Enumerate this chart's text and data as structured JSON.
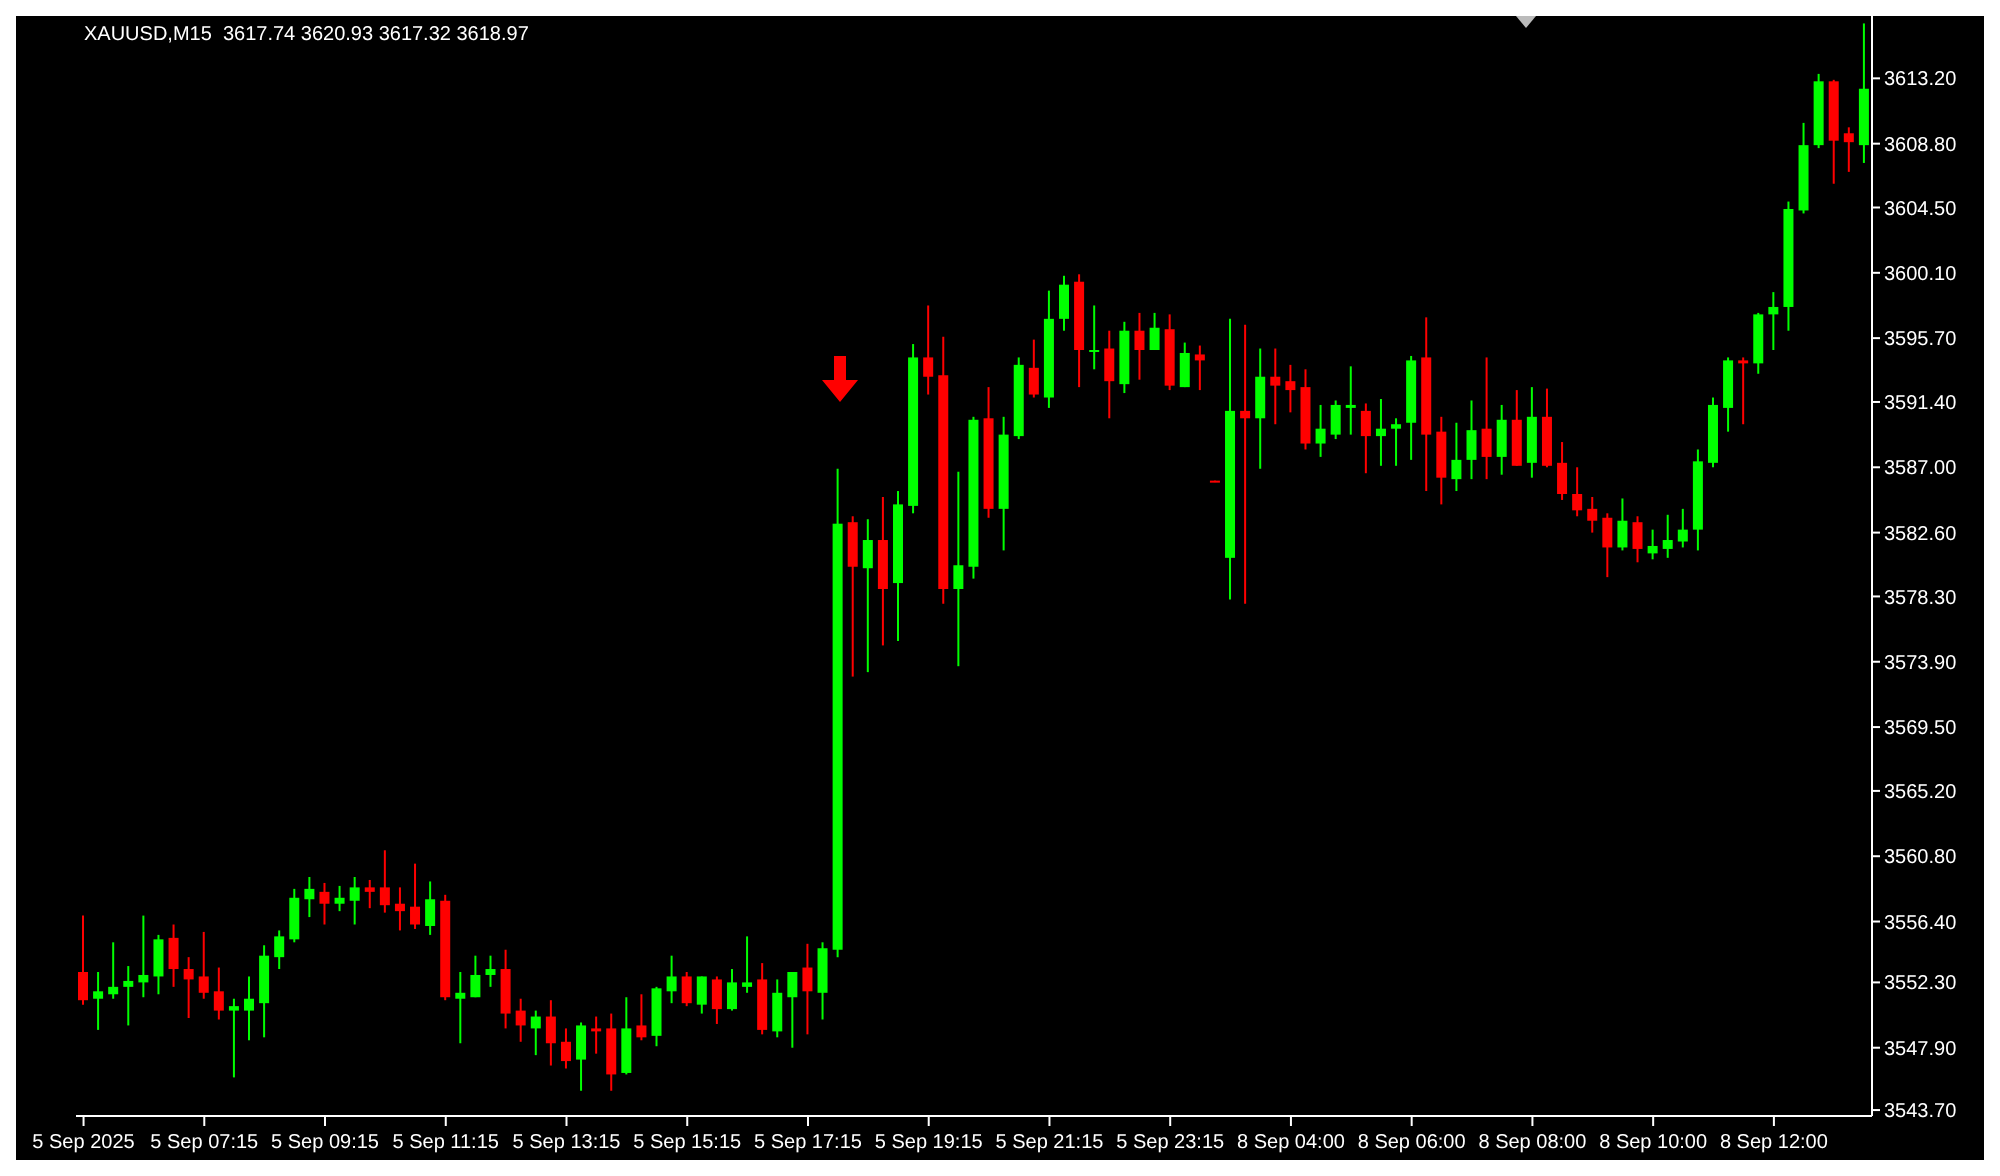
{
  "chart_data": {
    "type": "candlestick",
    "title": "XAUUSD,M15  3617.74 3620.93 3617.32 3618.97",
    "categories": [
      "5 Sep 2025",
      null,
      null,
      null,
      null,
      null,
      null,
      null,
      "5 Sep 07:15",
      null,
      null,
      null,
      null,
      null,
      null,
      null,
      "5 Sep 09:15",
      null,
      null,
      null,
      null,
      null,
      null,
      null,
      "5 Sep 11:15",
      null,
      null,
      null,
      null,
      null,
      null,
      null,
      "5 Sep 13:15",
      null,
      null,
      null,
      null,
      null,
      null,
      null,
      "5 Sep 15:15",
      null,
      null,
      null,
      null,
      null,
      null,
      null,
      "5 Sep 17:15",
      null,
      null,
      null,
      null,
      null,
      null,
      null,
      "5 Sep 19:15",
      null,
      null,
      null,
      null,
      null,
      null,
      null,
      "5 Sep 21:15",
      null,
      null,
      null,
      null,
      null,
      null,
      null,
      "5 Sep 23:15",
      null,
      null,
      null,
      null,
      null,
      null,
      null,
      "8 Sep 04:00",
      null,
      null,
      null,
      null,
      null,
      null,
      null,
      "8 Sep 06:00",
      null,
      null,
      null,
      null,
      null,
      null,
      null,
      "8 Sep 08:00",
      null,
      null,
      null,
      null,
      null,
      null,
      null,
      "8 Sep 10:00",
      null,
      null,
      null,
      null,
      null,
      null,
      null,
      "8 Sep 12:00",
      null,
      null,
      null,
      null,
      null,
      null
    ],
    "ohlc": [
      [
        3553.0,
        3556.8,
        3550.8,
        3551.1
      ],
      [
        3551.2,
        3553.0,
        3549.1,
        3551.7
      ],
      [
        3551.5,
        3555.0,
        3551.2,
        3552.0
      ],
      [
        3552.0,
        3553.4,
        3549.4,
        3552.4
      ],
      [
        3552.3,
        3556.8,
        3551.3,
        3552.8
      ],
      [
        3552.7,
        3555.5,
        3551.5,
        3555.2
      ],
      [
        3555.3,
        3556.2,
        3552.0,
        3553.2
      ],
      [
        3553.2,
        3554.0,
        3549.9,
        3552.5
      ],
      [
        3552.7,
        3555.7,
        3551.2,
        3551.6
      ],
      [
        3551.7,
        3553.3,
        3549.8,
        3550.4
      ],
      [
        3550.4,
        3551.2,
        3545.9,
        3550.7
      ],
      [
        3550.4,
        3552.7,
        3548.4,
        3551.2
      ],
      [
        3550.9,
        3554.8,
        3548.6,
        3554.1
      ],
      [
        3554.0,
        3555.8,
        3553.2,
        3555.4
      ],
      [
        3555.2,
        3558.6,
        3555.0,
        3558.0
      ],
      [
        3557.9,
        3559.4,
        3556.7,
        3558.6
      ],
      [
        3558.4,
        3559.0,
        3556.2,
        3557.6
      ],
      [
        3557.6,
        3558.8,
        3557.1,
        3558.0
      ],
      [
        3557.8,
        3559.4,
        3556.2,
        3558.7
      ],
      [
        3558.7,
        3559.2,
        3557.3,
        3558.4
      ],
      [
        3558.7,
        3561.2,
        3557.0,
        3557.5
      ],
      [
        3557.6,
        3558.7,
        3555.8,
        3557.1
      ],
      [
        3557.4,
        3560.3,
        3555.9,
        3556.2
      ],
      [
        3556.1,
        3559.1,
        3555.5,
        3557.9
      ],
      [
        3557.8,
        3558.2,
        3551.1,
        3551.3
      ],
      [
        3551.2,
        3553.0,
        3548.2,
        3551.6
      ],
      [
        3551.3,
        3554.1,
        3551.3,
        3552.8
      ],
      [
        3552.8,
        3554.1,
        3552.0,
        3553.2
      ],
      [
        3553.2,
        3554.5,
        3549.2,
        3550.2
      ],
      [
        3550.4,
        3551.2,
        3548.3,
        3549.4
      ],
      [
        3549.2,
        3550.4,
        3547.4,
        3550.0
      ],
      [
        3550.0,
        3551.1,
        3546.7,
        3548.2
      ],
      [
        3548.3,
        3549.2,
        3546.5,
        3547.0
      ],
      [
        3547.1,
        3549.6,
        3545.0,
        3549.4
      ],
      [
        3549.2,
        3550.0,
        3547.5,
        3549.0
      ],
      [
        3549.2,
        3550.2,
        3545.0,
        3546.1
      ],
      [
        3546.2,
        3551.3,
        3546.1,
        3549.2
      ],
      [
        3549.4,
        3551.5,
        3548.4,
        3548.6
      ],
      [
        3548.7,
        3552.0,
        3548.0,
        3551.9
      ],
      [
        3551.7,
        3554.1,
        3550.9,
        3552.7
      ],
      [
        3552.7,
        3553.0,
        3550.7,
        3550.9
      ],
      [
        3550.8,
        3552.7,
        3550.2,
        3552.7
      ],
      [
        3552.5,
        3552.7,
        3549.5,
        3550.5
      ],
      [
        3550.5,
        3553.2,
        3550.4,
        3552.3
      ],
      [
        3552.0,
        3555.4,
        3551.6,
        3552.3
      ],
      [
        3552.5,
        3553.6,
        3548.8,
        3549.1
      ],
      [
        3549.0,
        3552.5,
        3548.6,
        3551.6
      ],
      [
        3551.3,
        3553.0,
        3547.9,
        3553.0
      ],
      [
        3553.3,
        3554.9,
        3548.8,
        3551.7
      ],
      [
        3551.6,
        3555.0,
        3549.8,
        3554.6
      ],
      [
        3554.5,
        3586.9,
        3554.0,
        3583.2
      ],
      [
        3583.3,
        3583.7,
        3572.9,
        3580.3
      ],
      [
        3580.2,
        3583.5,
        3573.2,
        3582.1
      ],
      [
        3582.1,
        3585.0,
        3575.0,
        3578.8
      ],
      [
        3579.2,
        3585.4,
        3575.3,
        3584.5
      ],
      [
        3584.4,
        3595.3,
        3583.9,
        3594.4
      ],
      [
        3594.4,
        3597.9,
        3591.9,
        3593.1
      ],
      [
        3593.2,
        3595.8,
        3577.8,
        3578.8
      ],
      [
        3578.8,
        3586.7,
        3573.6,
        3580.4
      ],
      [
        3580.3,
        3590.4,
        3579.5,
        3590.2
      ],
      [
        3590.3,
        3592.4,
        3583.6,
        3584.2
      ],
      [
        3584.2,
        3590.4,
        3581.4,
        3589.2
      ],
      [
        3589.1,
        3594.4,
        3588.9,
        3593.9
      ],
      [
        3593.7,
        3595.6,
        3591.7,
        3591.9
      ],
      [
        3591.7,
        3598.9,
        3591.0,
        3597.0
      ],
      [
        3597.0,
        3599.9,
        3596.2,
        3599.3
      ],
      [
        3599.5,
        3600.0,
        3592.4,
        3594.9
      ],
      [
        3594.8,
        3597.9,
        3593.6,
        3594.9
      ],
      [
        3595.0,
        3596.2,
        3590.3,
        3592.8
      ],
      [
        3592.6,
        3596.8,
        3592.0,
        3596.2
      ],
      [
        3596.2,
        3597.4,
        3592.9,
        3594.9
      ],
      [
        3594.9,
        3597.4,
        3594.9,
        3596.4
      ],
      [
        3596.3,
        3597.3,
        3592.2,
        3592.5
      ],
      [
        3592.4,
        3595.4,
        3592.4,
        3594.7
      ],
      [
        3594.6,
        3595.2,
        3592.2,
        3594.2
      ],
      [
        3586.1,
        3586.1,
        3586.0,
        3586.0
      ],
      [
        3580.9,
        3597.0,
        3578.1,
        3590.8
      ],
      [
        3590.8,
        3596.6,
        3577.8,
        3590.3
      ],
      [
        3590.3,
        3595.0,
        3586.9,
        3593.1
      ],
      [
        3593.1,
        3595.0,
        3589.9,
        3592.5
      ],
      [
        3592.8,
        3593.9,
        3590.7,
        3592.2
      ],
      [
        3592.4,
        3593.6,
        3588.2,
        3588.6
      ],
      [
        3588.6,
        3591.2,
        3587.7,
        3589.6
      ],
      [
        3589.2,
        3591.5,
        3588.9,
        3591.2
      ],
      [
        3591.0,
        3593.8,
        3589.2,
        3591.2
      ],
      [
        3590.8,
        3591.3,
        3586.6,
        3589.1
      ],
      [
        3589.1,
        3591.6,
        3587.1,
        3589.6
      ],
      [
        3589.6,
        3590.3,
        3587.1,
        3589.9
      ],
      [
        3590.0,
        3594.5,
        3587.5,
        3594.2
      ],
      [
        3594.4,
        3597.1,
        3585.4,
        3589.2
      ],
      [
        3589.4,
        3590.4,
        3584.5,
        3586.3
      ],
      [
        3586.2,
        3590.0,
        3585.4,
        3587.5
      ],
      [
        3587.5,
        3591.5,
        3586.2,
        3589.5
      ],
      [
        3589.6,
        3594.4,
        3586.2,
        3587.7
      ],
      [
        3587.7,
        3591.2,
        3586.5,
        3590.2
      ],
      [
        3590.2,
        3592.2,
        3587.1,
        3587.1
      ],
      [
        3587.3,
        3592.4,
        3586.3,
        3590.4
      ],
      [
        3590.4,
        3592.3,
        3587.0,
        3587.1
      ],
      [
        3587.3,
        3588.7,
        3584.8,
        3585.2
      ],
      [
        3585.2,
        3587.0,
        3583.7,
        3584.1
      ],
      [
        3584.2,
        3585.0,
        3582.6,
        3583.4
      ],
      [
        3583.6,
        3583.9,
        3579.6,
        3581.6
      ],
      [
        3581.6,
        3584.9,
        3581.4,
        3583.4
      ],
      [
        3583.3,
        3583.7,
        3580.6,
        3581.5
      ],
      [
        3581.2,
        3582.8,
        3580.8,
        3581.7
      ],
      [
        3581.5,
        3583.8,
        3580.9,
        3582.1
      ],
      [
        3582.0,
        3584.2,
        3581.6,
        3582.8
      ],
      [
        3582.8,
        3588.2,
        3581.4,
        3587.4
      ],
      [
        3587.3,
        3591.7,
        3587.0,
        3591.2
      ],
      [
        3591.0,
        3594.4,
        3589.4,
        3594.2
      ],
      [
        3594.2,
        3594.4,
        3589.9,
        3594.0
      ],
      [
        3594.0,
        3597.4,
        3593.3,
        3597.3
      ],
      [
        3597.3,
        3598.8,
        3594.9,
        3597.8
      ],
      [
        3597.8,
        3604.9,
        3596.2,
        3604.4
      ],
      [
        3604.3,
        3610.2,
        3604.1,
        3608.7
      ],
      [
        3608.7,
        3613.5,
        3608.5,
        3613.0
      ],
      [
        3613.0,
        3613.1,
        3606.1,
        3609.0
      ],
      [
        3609.5,
        3609.9,
        3606.9,
        3608.9
      ],
      [
        3608.7,
        3616.9,
        3607.5,
        3612.5
      ]
    ],
    "colors": [
      "#ff0000",
      "#00ff00",
      "#00ff00",
      "#00ff00",
      "#00ff00",
      "#00ff00",
      "#ff0000",
      "#ff0000",
      "#ff0000",
      "#ff0000",
      "#00ff00",
      "#00ff00",
      "#00ff00",
      "#00ff00",
      "#00ff00",
      "#00ff00",
      "#ff0000",
      "#00ff00",
      "#00ff00",
      "#ff0000",
      "#ff0000",
      "#ff0000",
      "#ff0000",
      "#00ff00",
      "#ff0000",
      "#00ff00",
      "#00ff00",
      "#00ff00",
      "#ff0000",
      "#ff0000",
      "#00ff00",
      "#ff0000",
      "#ff0000",
      "#00ff00",
      "#ff0000",
      "#ff0000",
      "#00ff00",
      "#ff0000",
      "#00ff00",
      "#00ff00",
      "#ff0000",
      "#00ff00",
      "#ff0000",
      "#00ff00",
      "#00ff00",
      "#ff0000",
      "#00ff00",
      "#00ff00",
      "#ff0000",
      "#00ff00",
      "#00ff00",
      "#ff0000",
      "#00ff00",
      "#ff0000",
      "#00ff00",
      "#00ff00",
      "#ff0000",
      "#ff0000",
      "#00ff00",
      "#00ff00",
      "#ff0000",
      "#00ff00",
      "#00ff00",
      "#ff0000",
      "#00ff00",
      "#00ff00",
      "#ff0000",
      "#00ff00",
      "#ff0000",
      "#00ff00",
      "#ff0000",
      "#00ff00",
      "#ff0000",
      "#00ff00",
      "#ff0000",
      "#ff0000",
      "#00ff00",
      "#ff0000",
      "#00ff00",
      "#ff0000",
      "#ff0000",
      "#ff0000",
      "#00ff00",
      "#00ff00",
      "#00ff00",
      "#ff0000",
      "#00ff00",
      "#00ff00",
      "#00ff00",
      "#ff0000",
      "#ff0000",
      "#00ff00",
      "#00ff00",
      "#ff0000",
      "#00ff00",
      "#ff0000",
      "#00ff00",
      "#ff0000",
      "#ff0000",
      "#ff0000",
      "#ff0000",
      "#ff0000",
      "#00ff00",
      "#ff0000",
      "#00ff00",
      "#00ff00",
      "#00ff00",
      "#00ff00",
      "#00ff00",
      "#00ff00",
      "#ff0000",
      "#00ff00",
      "#00ff00",
      "#00ff00",
      "#00ff00",
      "#00ff00",
      "#ff0000",
      "#ff0000",
      "#00ff00"
    ],
    "ylim": [
      3543.3,
      3617.4
    ],
    "yticks": [
      {
        "value": 3543.7,
        "label": "3543.70"
      },
      {
        "value": 3547.9,
        "label": "3547.90"
      },
      {
        "value": 3552.3,
        "label": "3552.30"
      },
      {
        "value": 3556.4,
        "label": "3556.40"
      },
      {
        "value": 3560.8,
        "label": "3560.80"
      },
      {
        "value": 3565.2,
        "label": "3565.20"
      },
      {
        "value": 3569.5,
        "label": "3569.50"
      },
      {
        "value": 3573.9,
        "label": "3573.90"
      },
      {
        "value": 3578.3,
        "label": "3578.30"
      },
      {
        "value": 3582.6,
        "label": "3582.60"
      },
      {
        "value": 3587.0,
        "label": "3587.00"
      },
      {
        "value": 3591.4,
        "label": "3591.40"
      },
      {
        "value": 3595.7,
        "label": "3595.70"
      },
      {
        "value": 3600.1,
        "label": "3600.10"
      },
      {
        "value": 3604.5,
        "label": "3604.50"
      },
      {
        "value": 3608.8,
        "label": "3608.80"
      },
      {
        "value": 3613.2,
        "label": "3613.20"
      }
    ]
  }
}
